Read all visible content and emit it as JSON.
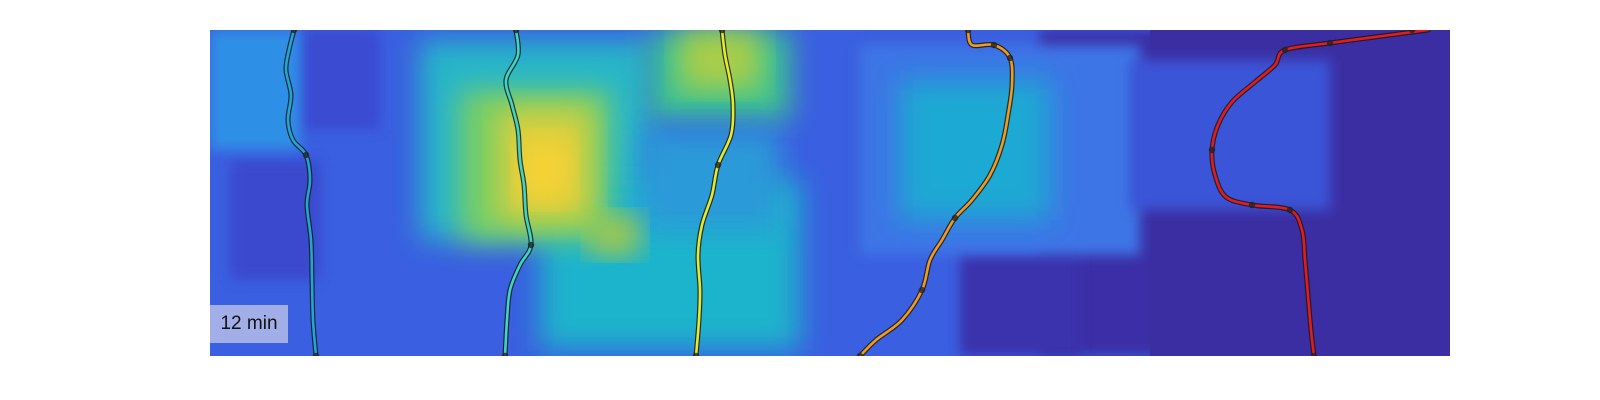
{
  "time_label": "12 min",
  "colors": {
    "background_dark": "#3a2fa6",
    "background_blue": "#3a63e0",
    "heat_cyan": "#21c4c4",
    "heat_green": "#6fd06a",
    "heat_yellow": "#f5d33a",
    "marker": "#222222",
    "track_1": "#1ea6d6",
    "track_2": "#3ad6c8",
    "track_3": "#e6ea2a",
    "track_4": "#f09a1e",
    "track_5": "#e41a1c"
  },
  "tracks": [
    {
      "id": "track-1",
      "color_key": "track_1"
    },
    {
      "id": "track-2",
      "color_key": "track_2"
    },
    {
      "id": "track-3",
      "color_key": "track_3"
    },
    {
      "id": "track-4",
      "color_key": "track_4"
    },
    {
      "id": "track-5",
      "color_key": "track_5"
    }
  ]
}
